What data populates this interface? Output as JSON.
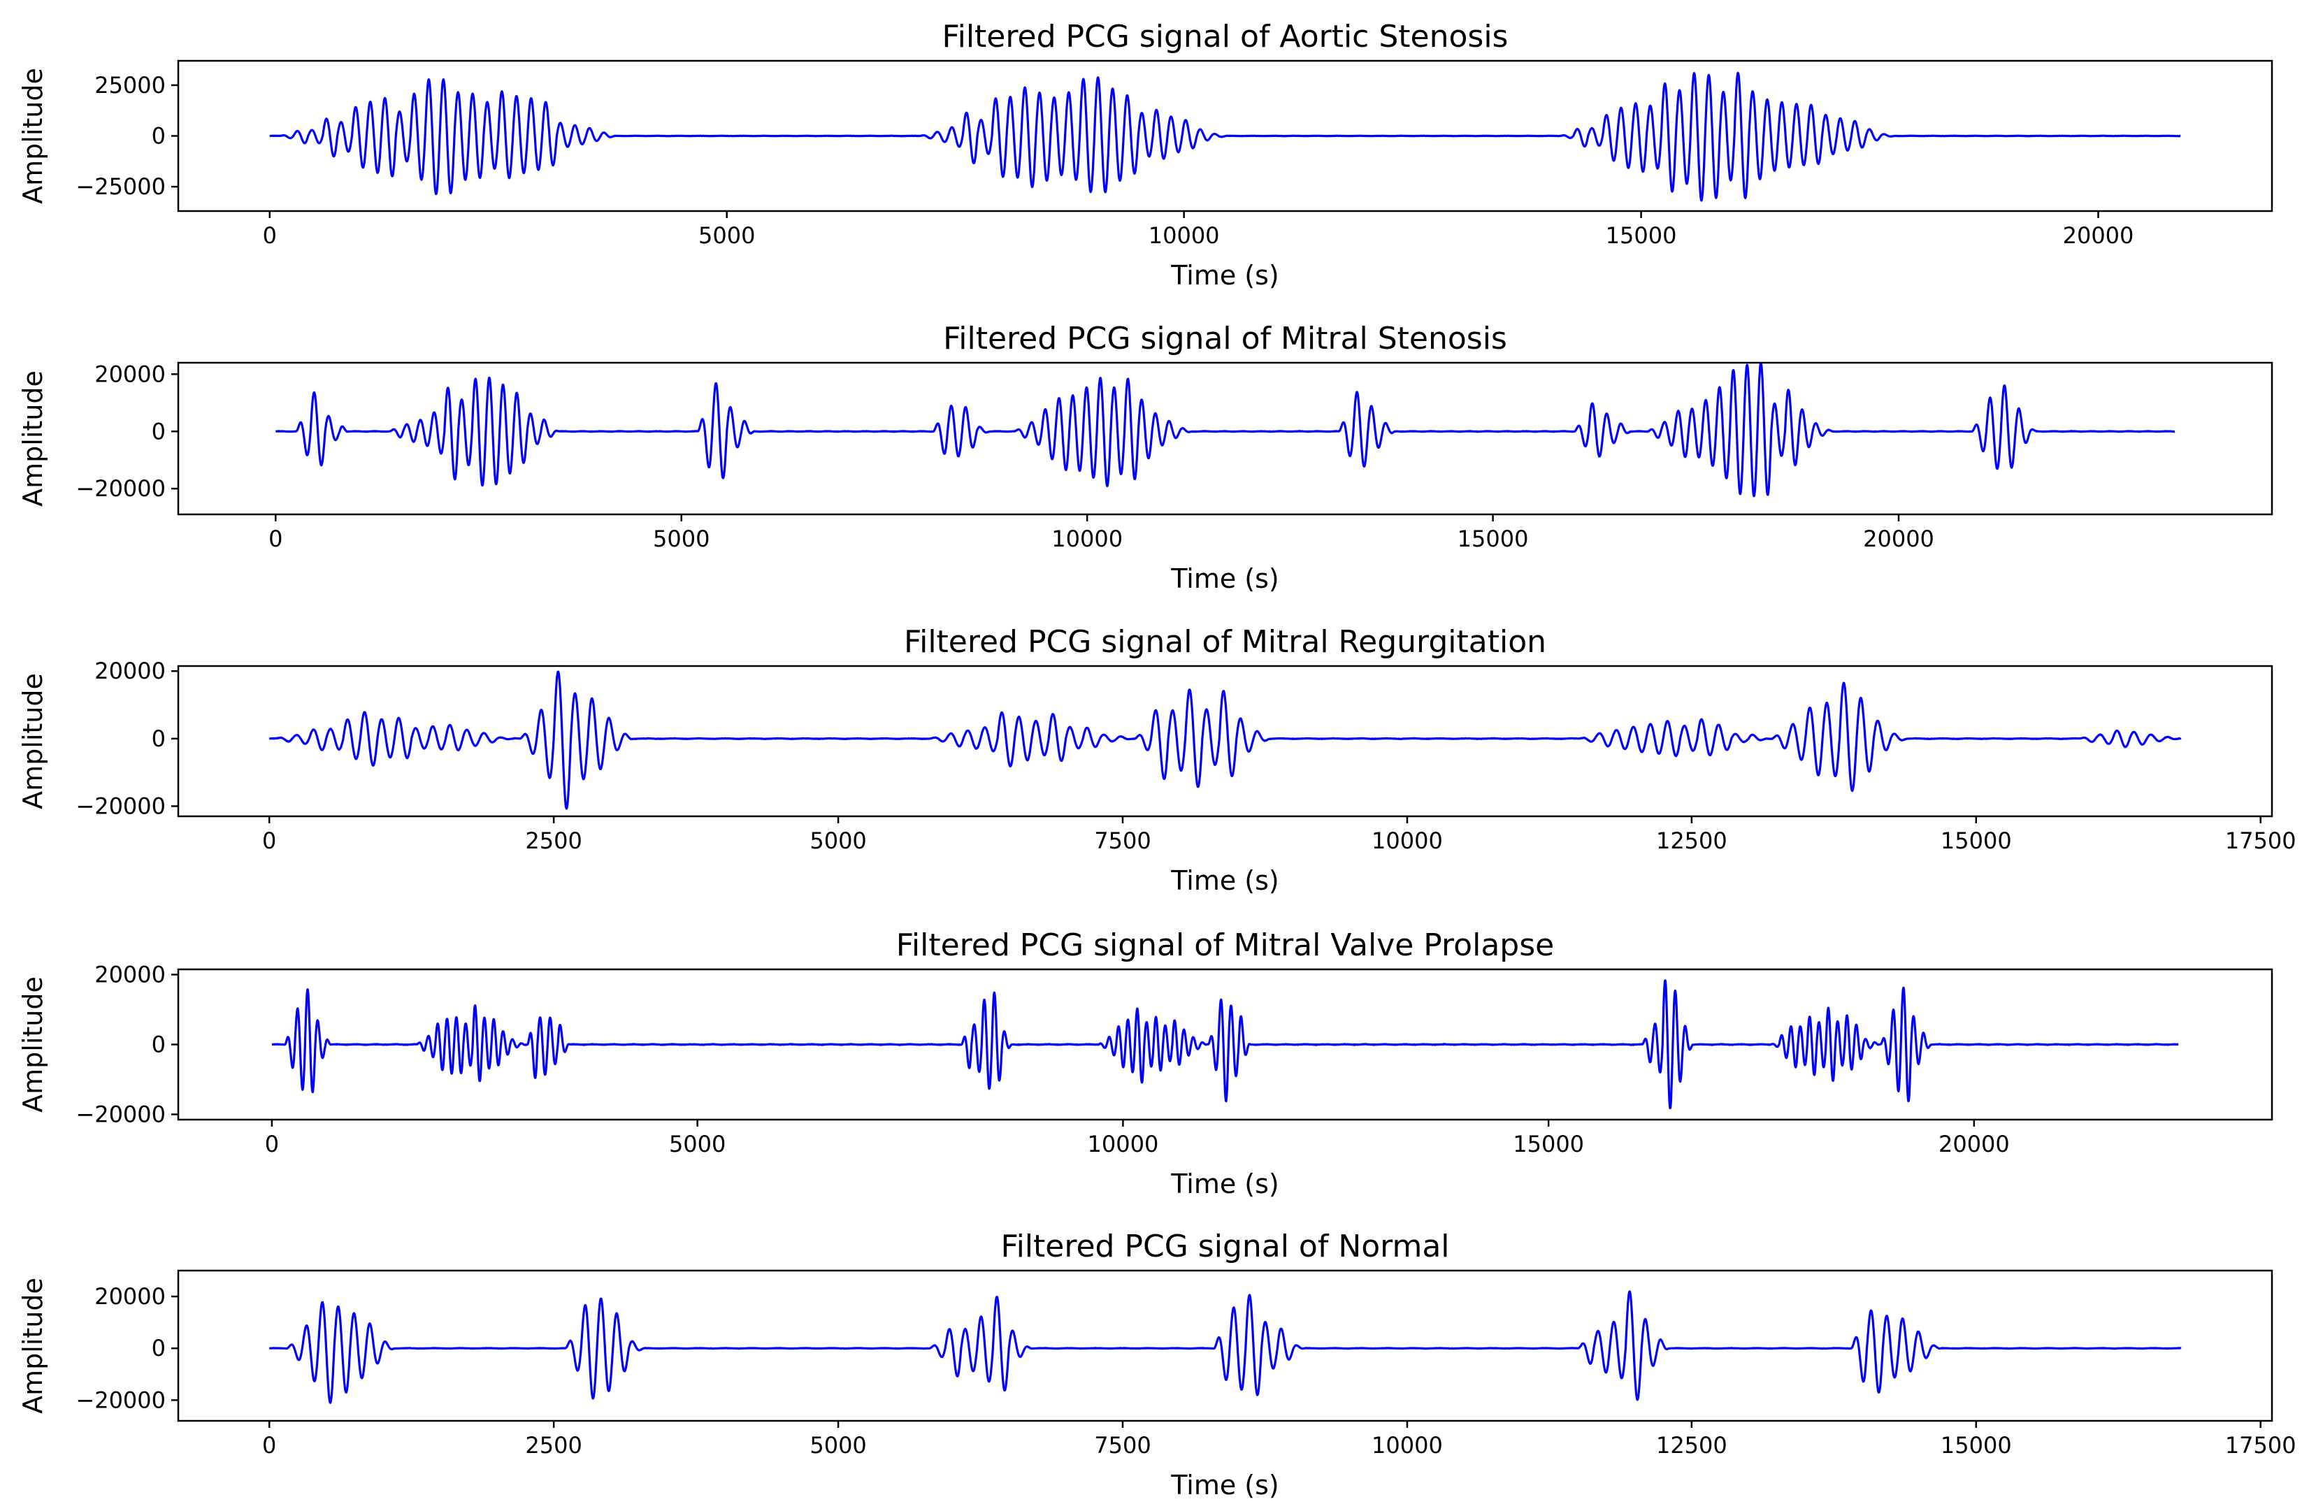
{
  "figure": {
    "title_prefix": "Filtered PCG signal of",
    "line_color": "#0000ff",
    "background": "#ffffff"
  },
  "chart_data": [
    {
      "type": "line",
      "title": "Filtered PCG signal of Aortic Stenosis",
      "xlabel": "Time (s)",
      "ylabel": "Amplitude",
      "xlim": [
        -1000,
        21900
      ],
      "ylim": [
        -37000,
        37000
      ],
      "xticks": [
        0,
        5000,
        10000,
        15000,
        20000
      ],
      "yticks": [
        -25000,
        0,
        25000
      ],
      "n_samples": 20900,
      "series": [
        {
          "color": "#0000ff",
          "bursts": [
            {
              "start": 100,
              "end": 3800,
              "peak": 33000,
              "center": 2200,
              "cycle": 160
            },
            {
              "start": 7100,
              "end": 10500,
              "peak": 34000,
              "center": 8800,
              "cycle": 160
            },
            {
              "start": 14100,
              "end": 17800,
              "peak": 34000,
              "center": 16000,
              "cycle": 160
            }
          ]
        }
      ]
    },
    {
      "type": "line",
      "title": "Filtered PCG signal of Mitral Stenosis",
      "xlabel": "Time (s)",
      "ylabel": "Amplitude",
      "xlim": [
        -1200,
        24600
      ],
      "ylim": [
        -29000,
        24000
      ],
      "xticks": [
        0,
        5000,
        10000,
        15000,
        20000
      ],
      "yticks": [
        -20000,
        0,
        20000
      ],
      "n_samples": 23400,
      "series": [
        {
          "color": "#0000ff",
          "bursts": [
            {
              "start": 250,
              "end": 900,
              "peak": 15000,
              "center": 450,
              "cycle": 180
            },
            {
              "start": 1400,
              "end": 3500,
              "peak": 23000,
              "center": 2650,
              "cycle": 170
            },
            {
              "start": 5200,
              "end": 5900,
              "peak": 21500,
              "center": 5450,
              "cycle": 180
            },
            {
              "start": 8100,
              "end": 8800,
              "peak": 13000,
              "center": 8350,
              "cycle": 180
            },
            {
              "start": 9100,
              "end": 11300,
              "peak": 22000,
              "center": 10300,
              "cycle": 170
            },
            {
              "start": 13100,
              "end": 13800,
              "peak": 16000,
              "center": 13300,
              "cycle": 180
            },
            {
              "start": 16000,
              "end": 16700,
              "peak": 13000,
              "center": 16200,
              "cycle": 180
            },
            {
              "start": 16900,
              "end": 19200,
              "peak": 26000,
              "center": 18100,
              "cycle": 170
            },
            {
              "start": 20900,
              "end": 21700,
              "peak": 22000,
              "center": 21200,
              "cycle": 180
            }
          ]
        }
      ]
    },
    {
      "type": "line",
      "title": "Filtered PCG signal of Mitral Regurgitation",
      "xlabel": "Time (s)",
      "ylabel": "Amplitude",
      "xlim": [
        -800,
        17600
      ],
      "ylim": [
        -23000,
        21500
      ],
      "xticks": [
        0,
        2500,
        5000,
        7500,
        10000,
        12500,
        15000,
        17500
      ],
      "yticks": [
        -20000,
        0,
        20000
      ],
      "n_samples": 16800,
      "series": [
        {
          "color": "#0000ff",
          "bursts": [
            {
              "start": 50,
              "end": 2200,
              "peak": 8000,
              "center": 900,
              "cycle": 150
            },
            {
              "start": 2200,
              "end": 3200,
              "peak": 21000,
              "center": 2600,
              "cycle": 150
            },
            {
              "start": 5800,
              "end": 7600,
              "peak": 9000,
              "center": 6600,
              "cycle": 150
            },
            {
              "start": 7600,
              "end": 8800,
              "peak": 21000,
              "center": 8100,
              "cycle": 150
            },
            {
              "start": 11500,
              "end": 13200,
              "peak": 8000,
              "center": 12300,
              "cycle": 150
            },
            {
              "start": 13200,
              "end": 14400,
              "peak": 18000,
              "center": 13800,
              "cycle": 150
            },
            {
              "start": 15900,
              "end": 16800,
              "peak": 3000,
              "center": 16300,
              "cycle": 150
            }
          ]
        }
      ]
    },
    {
      "type": "line",
      "title": "Filtered PCG signal of Mitral Valve Prolapse",
      "xlabel": "Time (s)",
      "ylabel": "Amplitude",
      "xlim": [
        -1100,
        23500
      ],
      "ylim": [
        -21500,
        21500
      ],
      "xticks": [
        0,
        5000,
        10000,
        15000,
        20000
      ],
      "yticks": [
        -20000,
        0,
        20000
      ],
      "n_samples": 22400,
      "series": [
        {
          "color": "#0000ff",
          "bursts": [
            {
              "start": 150,
              "end": 700,
              "peak": 20000,
              "center": 400,
              "cycle": 120
            },
            {
              "start": 1700,
              "end": 3000,
              "peak": 12000,
              "center": 2300,
              "cycle": 110
            },
            {
              "start": 3000,
              "end": 3500,
              "peak": 18000,
              "center": 3200,
              "cycle": 120
            },
            {
              "start": 8100,
              "end": 8700,
              "peak": 20000,
              "center": 8400,
              "cycle": 120
            },
            {
              "start": 9700,
              "end": 11000,
              "peak": 12000,
              "center": 10300,
              "cycle": 110
            },
            {
              "start": 11000,
              "end": 11500,
              "peak": 18000,
              "center": 11250,
              "cycle": 120
            },
            {
              "start": 16100,
              "end": 16700,
              "peak": 19000,
              "center": 16400,
              "cycle": 120
            },
            {
              "start": 17600,
              "end": 18900,
              "peak": 12000,
              "center": 18300,
              "cycle": 110
            },
            {
              "start": 18900,
              "end": 19500,
              "peak": 20000,
              "center": 19200,
              "cycle": 120
            }
          ]
        }
      ]
    },
    {
      "type": "line",
      "title": "Filtered PCG signal of Normal",
      "xlabel": "Time (s)",
      "ylabel": "Amplitude",
      "xlim": [
        -800,
        17600
      ],
      "ylim": [
        -28000,
        30000
      ],
      "xticks": [
        0,
        2500,
        5000,
        7500,
        10000,
        12500,
        15000,
        17500
      ],
      "yticks": [
        -20000,
        0,
        20000
      ],
      "n_samples": 16800,
      "series": [
        {
          "color": "#0000ff",
          "bursts": [
            {
              "start": 150,
              "end": 1100,
              "peak": 27000,
              "center": 700,
              "cycle": 140
            },
            {
              "start": 2600,
              "end": 3300,
              "peak": 22000,
              "center": 2850,
              "cycle": 140
            },
            {
              "start": 5800,
              "end": 6700,
              "peak": 22000,
              "center": 6350,
              "cycle": 140
            },
            {
              "start": 8300,
              "end": 9100,
              "peak": 27000,
              "center": 8500,
              "cycle": 140
            },
            {
              "start": 11500,
              "end": 12300,
              "peak": 22000,
              "center": 11950,
              "cycle": 140
            },
            {
              "start": 13900,
              "end": 14700,
              "peak": 24000,
              "center": 14150,
              "cycle": 140
            }
          ]
        }
      ]
    }
  ]
}
